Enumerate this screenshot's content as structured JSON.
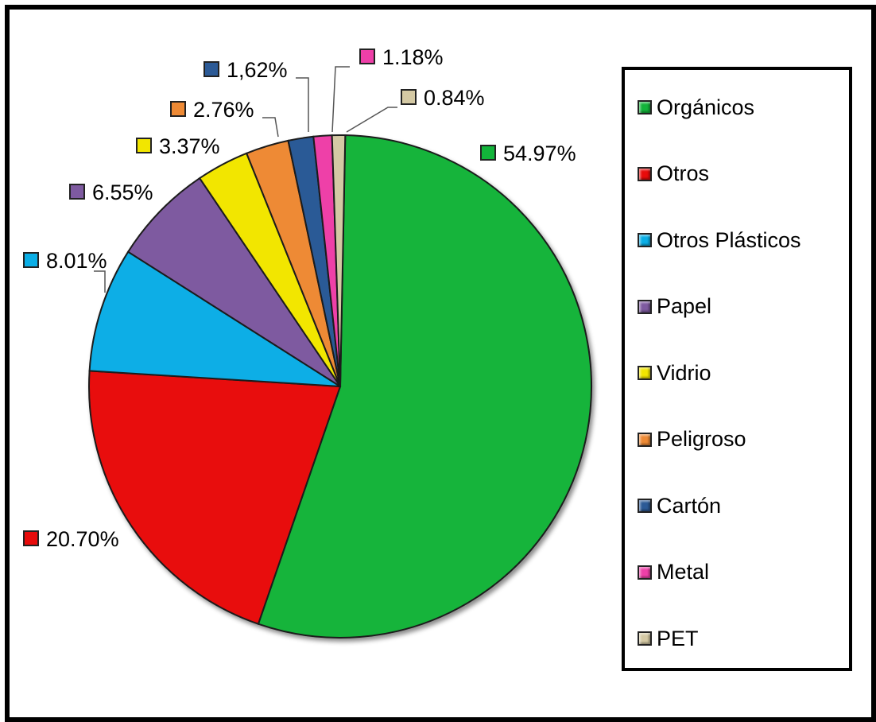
{
  "chart_data": {
    "type": "pie",
    "title": "",
    "categories": [
      "Orgánicos",
      "Otros",
      "Otros Plásticos",
      "Papel",
      "Vidrio",
      "Peligroso",
      "Cartón",
      "Metal",
      "PET"
    ],
    "values": [
      54.97,
      20.7,
      8.01,
      6.55,
      3.37,
      2.76,
      1.62,
      1.18,
      0.84
    ],
    "data_labels": [
      "54.97%",
      "20.70%",
      "8.01%",
      "6.55%",
      "3.37%",
      "2.76%",
      "1,62%",
      "1.18%",
      "0.84%"
    ],
    "colors": [
      "#12b43a",
      "#e80b0b",
      "#0aaee6",
      "#7e5aa0",
      "#f2e600",
      "#ee8a35",
      "#2c5a96",
      "#ee3fa8",
      "#d4c9a4"
    ],
    "legend_placement": "right",
    "legend": [
      "Orgánicos",
      "Otros",
      "Otros Plásticos",
      "Papel",
      "Vidrio",
      "Peligroso",
      "Cartón",
      "Metal",
      "PET"
    ]
  }
}
